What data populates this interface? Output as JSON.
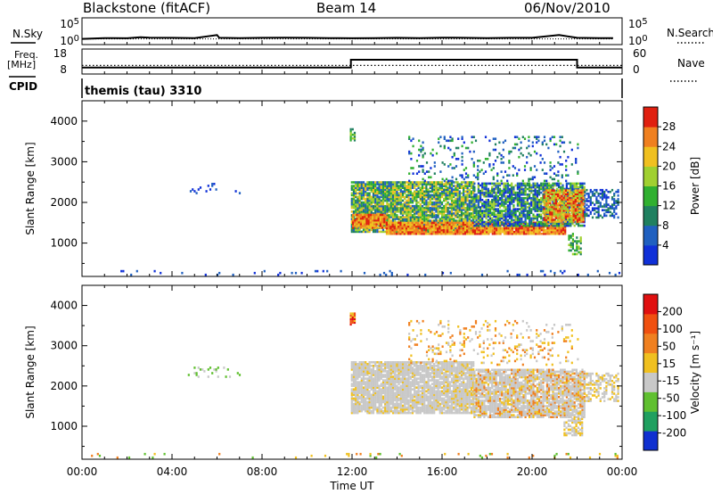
{
  "header": {
    "station": "Blackstone (fitACF)",
    "beam": "Beam 14",
    "date": "06/Nov/2010"
  },
  "chart_data": [
    {
      "type": "line",
      "panel": "noise",
      "left_label": "N.Sky",
      "right_label": "N.Search",
      "left_ticks": [
        "10^5",
        "10^0"
      ],
      "right_ticks": [
        "10^5",
        "10^0"
      ],
      "yscale": "log",
      "ylim": [
        1,
        100000
      ],
      "x_hours": [
        0,
        1,
        2,
        2.6,
        3,
        4,
        5,
        6,
        6.1,
        7,
        8,
        9,
        10,
        11,
        12,
        13,
        14,
        15,
        16,
        17,
        18,
        19,
        20,
        21.2,
        22,
        23,
        23.6
      ],
      "n_sky": [
        5,
        8,
        7,
        12,
        10,
        9,
        8,
        40,
        9,
        8,
        9,
        10,
        9,
        8,
        7,
        8,
        9,
        8,
        10,
        9,
        8,
        9,
        9,
        40,
        9,
        8,
        8
      ],
      "n_search": [
        5,
        5,
        5,
        5,
        5,
        5,
        5,
        5,
        5,
        5,
        5,
        5,
        5,
        5,
        5,
        5,
        5,
        5,
        5,
        5,
        5,
        5,
        5,
        5,
        5,
        5,
        5
      ]
    },
    {
      "type": "line",
      "panel": "frequency",
      "left_label": "Freq.",
      "left_unit": "[MHz]",
      "right_label": "Nave",
      "left_ticks": [
        "18",
        "8"
      ],
      "right_ticks": [
        "60",
        "0"
      ],
      "ylim_freq": [
        8,
        18
      ],
      "ylim_nave": [
        0,
        60
      ],
      "freq_x_hours": [
        0,
        11.95,
        11.95,
        22.0,
        22.0,
        24
      ],
      "freq_values": [
        10.4,
        10.4,
        15.2,
        15.2,
        10.4,
        10.4
      ],
      "nave_x_hours": [
        0,
        24
      ],
      "nave_values": [
        22,
        22
      ]
    },
    {
      "type": "table",
      "panel": "cpid",
      "left_label": "CPID",
      "segments": [
        {
          "label": "themis (tau) 3310",
          "start_hour": 0,
          "end_hour": 24
        }
      ]
    },
    {
      "type": "heatmap",
      "panel": "power",
      "ylabel": "Slant Range [km]",
      "yticks": [
        "1000",
        "2000",
        "3000",
        "4000"
      ],
      "ylim": [
        180,
        4500
      ],
      "xlim": [
        0,
        24
      ],
      "colorbar_label": "Power [dB]",
      "colorbar_ticks": [
        "28",
        "24",
        "20",
        "16",
        "12",
        "8",
        "4"
      ],
      "colorbar_colors": [
        "#1030d8",
        "#2060c0",
        "#208060",
        "#30b030",
        "#a0d030",
        "#f0c020",
        "#f08020",
        "#e02010"
      ],
      "patches": [
        {
          "x0": 0.05,
          "x1": 24.0,
          "y0": 190,
          "y1": 290,
          "density": 0.06,
          "levels": [
            0,
            1,
            1
          ]
        },
        {
          "x0": 11.95,
          "x1": 17.4,
          "y0": 1250,
          "y1": 2500,
          "density": 0.9,
          "levels": [
            1,
            2,
            3,
            4,
            5
          ]
        },
        {
          "x0": 12.0,
          "x1": 13.5,
          "y0": 1350,
          "y1": 1700,
          "density": 0.95,
          "levels": [
            5,
            6,
            7
          ]
        },
        {
          "x0": 13.5,
          "x1": 21.5,
          "y0": 1200,
          "y1": 1500,
          "density": 0.95,
          "levels": [
            5,
            6,
            7
          ]
        },
        {
          "x0": 17.4,
          "x1": 22.3,
          "y0": 1400,
          "y1": 2450,
          "density": 0.8,
          "levels": [
            0,
            1,
            2,
            3,
            4
          ]
        },
        {
          "x0": 20.5,
          "x1": 22.3,
          "y0": 1500,
          "y1": 2300,
          "density": 0.85,
          "levels": [
            4,
            5,
            6,
            7
          ]
        },
        {
          "x0": 22.3,
          "x1": 23.8,
          "y0": 1600,
          "y1": 2300,
          "density": 0.55,
          "levels": [
            0,
            1,
            2
          ]
        },
        {
          "x0": 11.9,
          "x1": 12.1,
          "y0": 3500,
          "y1": 3800,
          "density": 0.7,
          "levels": [
            2,
            3,
            4
          ]
        },
        {
          "x0": 14.5,
          "x1": 22.0,
          "y0": 2500,
          "y1": 3600,
          "density": 0.14,
          "levels": [
            0,
            1,
            2,
            3
          ]
        },
        {
          "x0": 4.7,
          "x1": 7.0,
          "y0": 2200,
          "y1": 2450,
          "density": 0.12,
          "levels": [
            0,
            1
          ]
        },
        {
          "x0": 21.6,
          "x1": 22.2,
          "y0": 700,
          "y1": 1200,
          "density": 0.5,
          "levels": [
            2,
            3,
            4
          ]
        }
      ]
    },
    {
      "type": "heatmap",
      "panel": "velocity",
      "ylabel": "Slant Range [km]",
      "yticks": [
        "1000",
        "2000",
        "3000",
        "4000"
      ],
      "ylim": [
        180,
        4500
      ],
      "xlim": [
        0,
        24
      ],
      "xlabel": "Time UT",
      "xticks": [
        "00:00",
        "04:00",
        "08:00",
        "12:00",
        "16:00",
        "20:00",
        "00:00"
      ],
      "colorbar_label": "Velocity [m s⁻¹]",
      "colorbar_ticks": [
        "200",
        "100",
        "50",
        "15",
        "-15",
        "-50",
        "-100",
        "-200"
      ],
      "colorbar_colors": [
        "#1030d0",
        "#20a060",
        "#60c030",
        "#c8c8c8",
        "#f0c020",
        "#f08020",
        "#f05010",
        "#e01010"
      ],
      "patches": [
        {
          "x0": 0.05,
          "x1": 24.0,
          "y0": 190,
          "y1": 290,
          "density": 0.05,
          "levels": [
            2,
            4,
            5
          ]
        },
        {
          "x0": 11.95,
          "x1": 17.4,
          "y0": 1300,
          "y1": 2600,
          "density": 0.9,
          "levels": [
            3,
            3,
            3,
            3,
            3,
            3,
            4
          ]
        },
        {
          "x0": 17.4,
          "x1": 22.3,
          "y0": 1200,
          "y1": 2400,
          "density": 0.85,
          "levels": [
            3,
            3,
            3,
            3,
            3,
            4,
            5
          ]
        },
        {
          "x0": 21.4,
          "x1": 22.2,
          "y0": 750,
          "y1": 1300,
          "density": 0.6,
          "levels": [
            3,
            3,
            4
          ]
        },
        {
          "x0": 22.3,
          "x1": 23.8,
          "y0": 1600,
          "y1": 2300,
          "density": 0.5,
          "levels": [
            3,
            3,
            4
          ]
        },
        {
          "x0": 11.9,
          "x1": 12.1,
          "y0": 3500,
          "y1": 3800,
          "density": 0.7,
          "levels": [
            4,
            6,
            7
          ]
        },
        {
          "x0": 14.5,
          "x1": 22.0,
          "y0": 2500,
          "y1": 3600,
          "density": 0.14,
          "levels": [
            3,
            4,
            5
          ]
        },
        {
          "x0": 4.7,
          "x1": 7.0,
          "y0": 2200,
          "y1": 2450,
          "density": 0.1,
          "levels": [
            3,
            2
          ]
        }
      ]
    }
  ]
}
